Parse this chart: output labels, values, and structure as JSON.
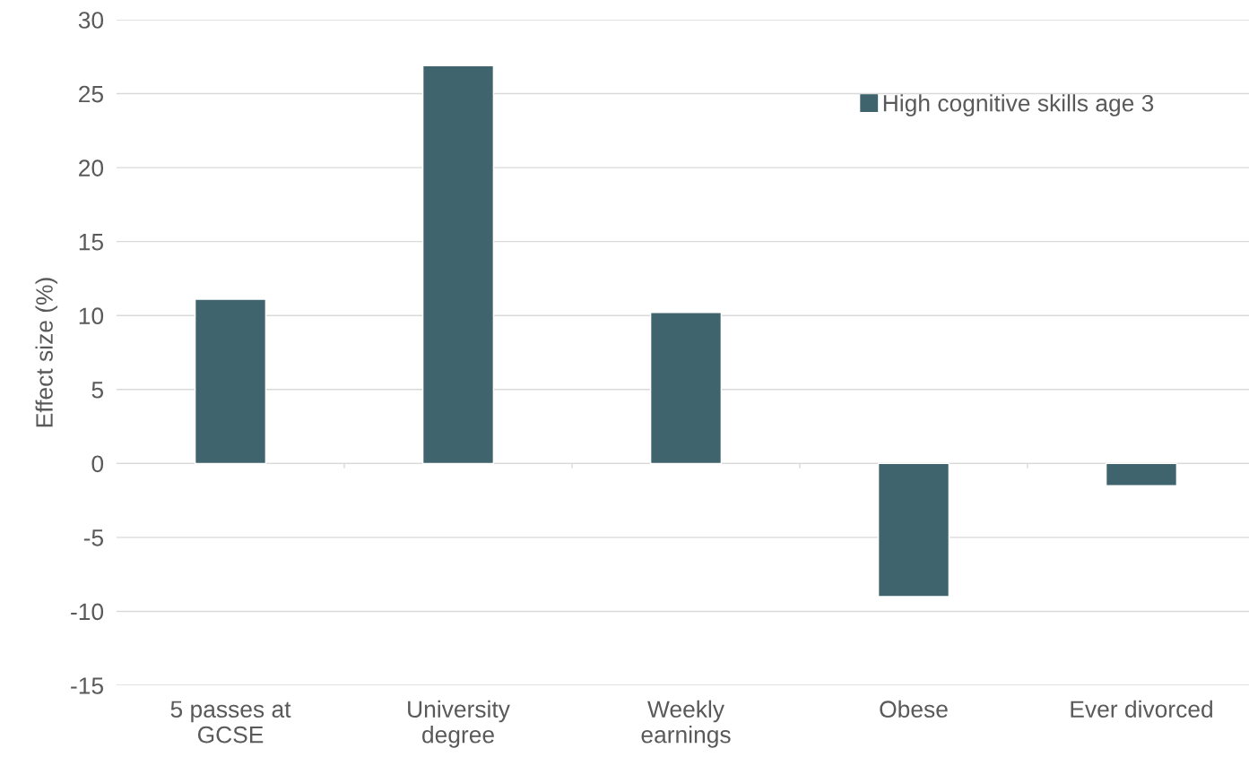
{
  "chart_data": {
    "type": "bar",
    "ylabel": "Effect size (%)",
    "categories": [
      "5 passes at\nGCSE",
      "University\ndegree",
      "Weekly\nearnings",
      "Obese",
      "Ever divorced"
    ],
    "series": [
      {
        "name": "High cognitive skills age 3",
        "color": "#3f646d",
        "values": [
          11.1,
          26.9,
          10.2,
          -9.0,
          -1.5
        ]
      }
    ],
    "ylim": [
      -15,
      30
    ],
    "yticks": [
      -15,
      -10,
      -5,
      0,
      5,
      10,
      15,
      20,
      25,
      30
    ],
    "grid": "y",
    "legend": "upper right"
  }
}
